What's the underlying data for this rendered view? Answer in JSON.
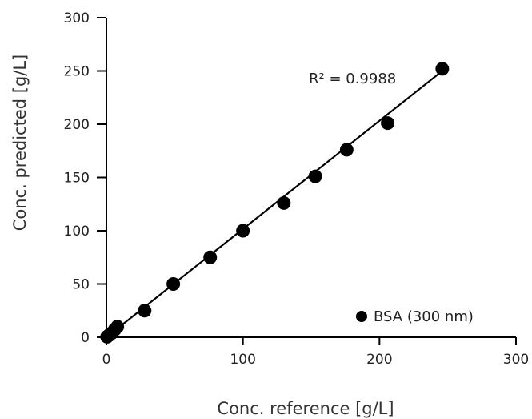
{
  "chart_data": {
    "type": "scatter",
    "title": "",
    "xlabel": "Conc. reference [g/L]",
    "ylabel": "Conc. predicted [g/L]",
    "xlim": [
      0,
      300
    ],
    "ylim": [
      0,
      300
    ],
    "x_ticks": [
      0,
      100,
      200,
      300
    ],
    "y_ticks": [
      0,
      50,
      100,
      150,
      200,
      250,
      300
    ],
    "x_tick_labels": [
      "0",
      "100",
      "200",
      "300"
    ],
    "y_tick_labels": [
      "0",
      "50",
      "100",
      "150",
      "200",
      "250",
      "300"
    ],
    "grid": false,
    "legend_position": "bottom-right",
    "series": [
      {
        "name": "BSA (300 nm)",
        "color": "#000000",
        "marker": "circle",
        "x": [
          0.5,
          2,
          4,
          6,
          8,
          28,
          49,
          76,
          100,
          130,
          153,
          176,
          206,
          246
        ],
        "y": [
          0.5,
          2,
          4,
          7,
          10,
          25,
          50,
          75,
          100,
          126,
          151,
          176,
          201,
          252
        ]
      }
    ],
    "trendline": {
      "color": "#000000",
      "x": [
        0,
        246
      ],
      "y": [
        0,
        250
      ]
    },
    "annotations": [
      {
        "text": "R² = 0.9988"
      }
    ]
  }
}
